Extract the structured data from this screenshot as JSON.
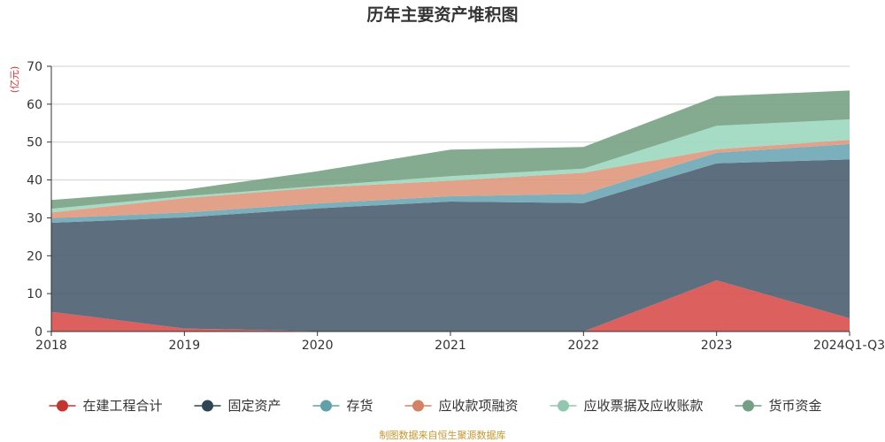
{
  "chart_data": {
    "type": "area",
    "stacked": true,
    "title": "历年主要资产堆积图",
    "unit": "(亿元)",
    "categories": [
      "2018",
      "2019",
      "2020",
      "2021",
      "2022",
      "2023",
      "2024Q1-Q3"
    ],
    "ylim": [
      0,
      70
    ],
    "yticks": [
      0,
      10,
      20,
      30,
      40,
      50,
      60,
      70
    ],
    "grid": true,
    "legend_position": "bottom",
    "series": [
      {
        "name": "在建工程合计",
        "color": "#d9534f",
        "marker_color": "#c23531",
        "values": [
          5.2,
          0.8,
          0.1,
          0.0,
          0.0,
          13.5,
          3.5
        ]
      },
      {
        "name": "固定资产",
        "color": "#4f6273",
        "marker_color": "#2f4554",
        "values": [
          23.5,
          29.3,
          32.4,
          34.3,
          33.9,
          30.9,
          41.9
        ]
      },
      {
        "name": "存货",
        "color": "#6fa8b5",
        "marker_color": "#61a0a8",
        "values": [
          1.2,
          1.3,
          1.3,
          1.4,
          2.4,
          2.8,
          4.1
        ]
      },
      {
        "name": "应收款项融资",
        "color": "#e09a80",
        "marker_color": "#d48265",
        "values": [
          1.5,
          3.8,
          4.2,
          4.1,
          5.6,
          0.9,
          1.1
        ]
      },
      {
        "name": "应收票据及应收账款",
        "color": "#9ed8c0",
        "marker_color": "#91c7ae",
        "values": [
          1.0,
          0.5,
          0.4,
          1.2,
          1.1,
          6.2,
          5.4
        ]
      },
      {
        "name": "货币资金",
        "color": "#7aa386",
        "marker_color": "#749f83",
        "values": [
          2.3,
          1.7,
          3.9,
          7.0,
          5.7,
          7.8,
          7.6
        ]
      }
    ]
  },
  "footer": {
    "source": "制图数据来自恒生聚源数据库"
  }
}
